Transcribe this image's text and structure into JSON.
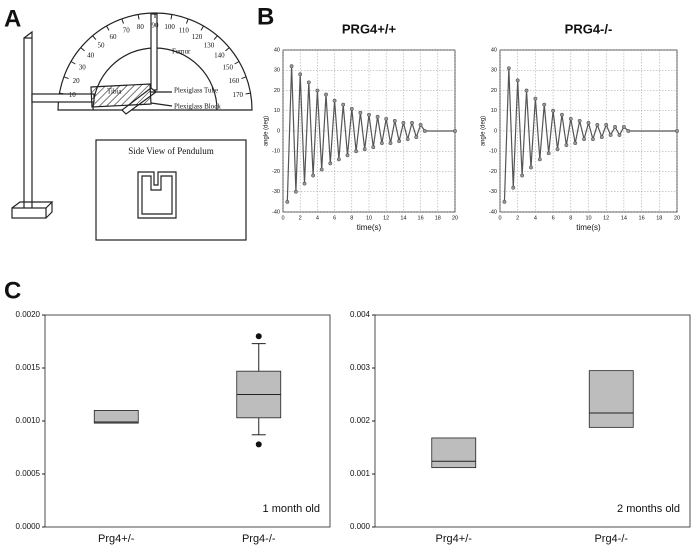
{
  "panels": [
    "A",
    "B",
    "C"
  ],
  "diagram": {
    "protractor_labels": [
      10,
      20,
      30,
      40,
      50,
      60,
      70,
      80,
      90,
      100,
      110,
      120,
      130,
      140,
      150,
      160,
      170
    ],
    "tibia": "Tibia",
    "femur": "Femur",
    "tube": "Plexiglass Tube",
    "block": "Plexiglass Block",
    "side_view": "Side View of Pendulum"
  },
  "chart_data": [
    {
      "type": "line",
      "title": "PRG4+/+",
      "x_label": "time(s)",
      "y_label": "angle (deg)",
      "x": [
        0.5,
        1,
        1.5,
        2,
        2.5,
        3,
        3.5,
        4,
        4.5,
        5,
        5.5,
        6,
        6.5,
        7,
        7.5,
        8,
        8.5,
        9,
        9.5,
        10,
        10.5,
        11,
        11.5,
        12,
        12.5,
        13,
        13.5,
        14,
        14.5,
        15,
        15.5,
        16,
        16.5,
        20
      ],
      "series": [
        {
          "color": "#555555",
          "values": [
            -35,
            32,
            -30,
            28,
            -26,
            24,
            -22,
            20,
            -19,
            18,
            -16,
            15,
            -14,
            13,
            -12,
            11,
            -10,
            9,
            -9,
            8,
            -8,
            7,
            -6,
            6,
            -6,
            5,
            -5,
            4,
            -4,
            4,
            -3,
            3,
            0,
            0
          ]
        }
      ],
      "xlim": [
        0,
        20
      ],
      "ylim": [
        -40,
        40
      ],
      "xticks": [
        0,
        2,
        4,
        6,
        8,
        10,
        12,
        14,
        16,
        18,
        20
      ],
      "yticks": [
        -40,
        -30,
        -20,
        -10,
        0,
        10,
        20,
        30,
        40
      ],
      "grid": true
    },
    {
      "type": "line",
      "title": "PRG4-/-",
      "x_label": "time(s)",
      "y_label": "angle (deg)",
      "x": [
        0.5,
        1,
        1.5,
        2,
        2.5,
        3,
        3.5,
        4,
        4.5,
        5,
        5.5,
        6,
        6.5,
        7,
        7.5,
        8,
        8.5,
        9,
        9.5,
        10,
        10.5,
        11,
        11.5,
        12,
        12.5,
        13,
        13.5,
        14,
        14.5,
        20
      ],
      "series": [
        {
          "color": "#555555",
          "values": [
            -35,
            31,
            -28,
            25,
            -22,
            20,
            -18,
            16,
            -14,
            13,
            -11,
            10,
            -9,
            8,
            -7,
            6,
            -6,
            5,
            -4,
            4,
            -4,
            3,
            -3,
            3,
            -2,
            2,
            -2,
            2,
            0,
            0
          ]
        }
      ],
      "xlim": [
        0,
        20
      ],
      "ylim": [
        -40,
        40
      ],
      "xticks": [
        0,
        2,
        4,
        6,
        8,
        10,
        12,
        14,
        16,
        18,
        20
      ],
      "yticks": [
        -40,
        -30,
        -20,
        -10,
        0,
        10,
        20,
        30,
        40
      ],
      "grid": true
    },
    {
      "type": "box",
      "annotation": "1 month old",
      "categories": [
        "Prg4+/-",
        "Prg4-/-"
      ],
      "color": "#bdbdbd",
      "boxes": [
        {
          "whislo": null,
          "q1": 0.00098,
          "med": 0.00099,
          "q3": 0.0011,
          "whishi": null
        },
        {
          "whislo": 0.00087,
          "q1": 0.00103,
          "med": 0.00125,
          "q3": 0.00147,
          "whishi": 0.00173,
          "fliers": [
            0.00078,
            0.0018
          ]
        }
      ],
      "ylim": [
        0,
        0.002
      ],
      "yticks": [
        {
          "value": 0,
          "label": "0.0000"
        },
        {
          "value": 0.0005,
          "label": "0.0005"
        },
        {
          "value": 0.001,
          "label": "0.0010"
        },
        {
          "value": 0.0015,
          "label": "0.0015"
        },
        {
          "value": 0.002,
          "label": "0.0020"
        }
      ]
    },
    {
      "type": "box",
      "annotation": "2 months old",
      "categories": [
        "Prg4+/-",
        "Prg4-/-"
      ],
      "color": "#bdbdbd",
      "boxes": [
        {
          "whislo": null,
          "q1": 0.00112,
          "med": 0.00124,
          "q3": 0.00168,
          "whishi": null
        },
        {
          "whislo": null,
          "q1": 0.00188,
          "med": 0.00215,
          "q3": 0.00295,
          "whishi": null
        }
      ],
      "ylim": [
        0,
        0.004
      ],
      "yticks": [
        {
          "value": 0,
          "label": "0.000"
        },
        {
          "value": 0.001,
          "label": "0.001"
        },
        {
          "value": 0.002,
          "label": "0.002"
        },
        {
          "value": 0.003,
          "label": "0.003"
        },
        {
          "value": 0.004,
          "label": "0.004"
        }
      ]
    }
  ]
}
